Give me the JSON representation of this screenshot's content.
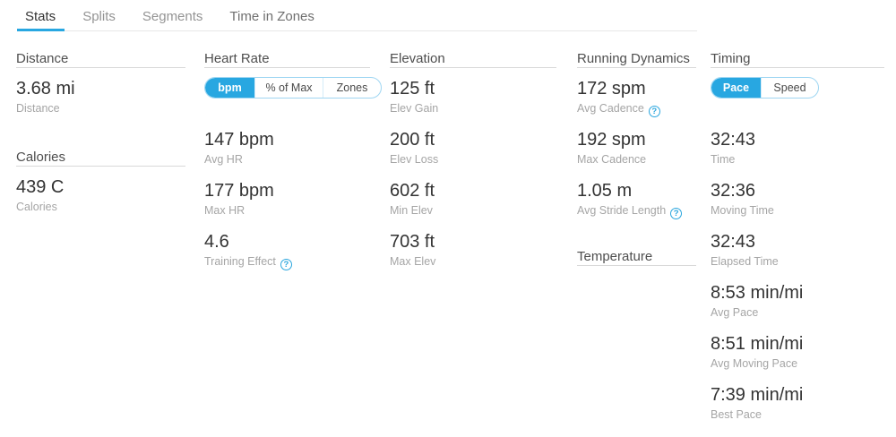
{
  "colors": {
    "accent_blue": "#28a7e1",
    "toggle_border": "#9fd6f2",
    "value_text": "#333333",
    "header_text": "#4e4e4e",
    "label_text": "#a5a5a5"
  },
  "tabs": {
    "items": [
      {
        "label": "Stats",
        "active": true
      },
      {
        "label": "Splits",
        "active": false
      },
      {
        "label": "Segments",
        "active": false
      },
      {
        "label": "Time in Zones",
        "active": false
      }
    ]
  },
  "help_icon": {
    "glyph": "?"
  },
  "sections": {
    "distance": {
      "header": "Distance",
      "metric": {
        "value": "3.68 mi",
        "label": "Distance"
      }
    },
    "calories": {
      "header": "Calories",
      "metric": {
        "value": "439 C",
        "label": "Calories"
      }
    },
    "heart_rate": {
      "header": "Heart Rate",
      "toggle": {
        "selected": "bpm",
        "options": [
          {
            "label": "bpm"
          },
          {
            "label": "% of Max"
          },
          {
            "label": "Zones"
          }
        ]
      },
      "metrics": [
        {
          "value": "147 bpm",
          "label": "Avg HR"
        },
        {
          "value": "177 bpm",
          "label": "Max HR"
        },
        {
          "value": "4.6",
          "label": "Training Effect",
          "help": true
        }
      ]
    },
    "elevation": {
      "header": "Elevation",
      "metrics": [
        {
          "value": "125 ft",
          "label": "Elev Gain"
        },
        {
          "value": "200 ft",
          "label": "Elev Loss"
        },
        {
          "value": "602 ft",
          "label": "Min Elev"
        },
        {
          "value": "703 ft",
          "label": "Max Elev"
        }
      ]
    },
    "running_dynamics": {
      "header": "Running Dynamics",
      "metrics": [
        {
          "value": "172 spm",
          "label": "Avg Cadence",
          "help": true
        },
        {
          "value": "192 spm",
          "label": "Max Cadence"
        },
        {
          "value": "1.05 m",
          "label": "Avg Stride Length",
          "help": true
        }
      ]
    },
    "temperature": {
      "header": "Temperature"
    },
    "timing": {
      "header": "Timing",
      "toggle": {
        "selected": "Pace",
        "options": [
          {
            "label": "Pace"
          },
          {
            "label": "Speed"
          }
        ]
      },
      "metrics": [
        {
          "value": "32:43",
          "label": "Time"
        },
        {
          "value": "32:36",
          "label": "Moving Time"
        },
        {
          "value": "32:43",
          "label": "Elapsed Time"
        },
        {
          "value": "8:53 min/mi",
          "label": "Avg Pace"
        },
        {
          "value": "8:51 min/mi",
          "label": "Avg Moving Pace"
        },
        {
          "value": "7:39 min/mi",
          "label": "Best Pace"
        }
      ]
    }
  }
}
